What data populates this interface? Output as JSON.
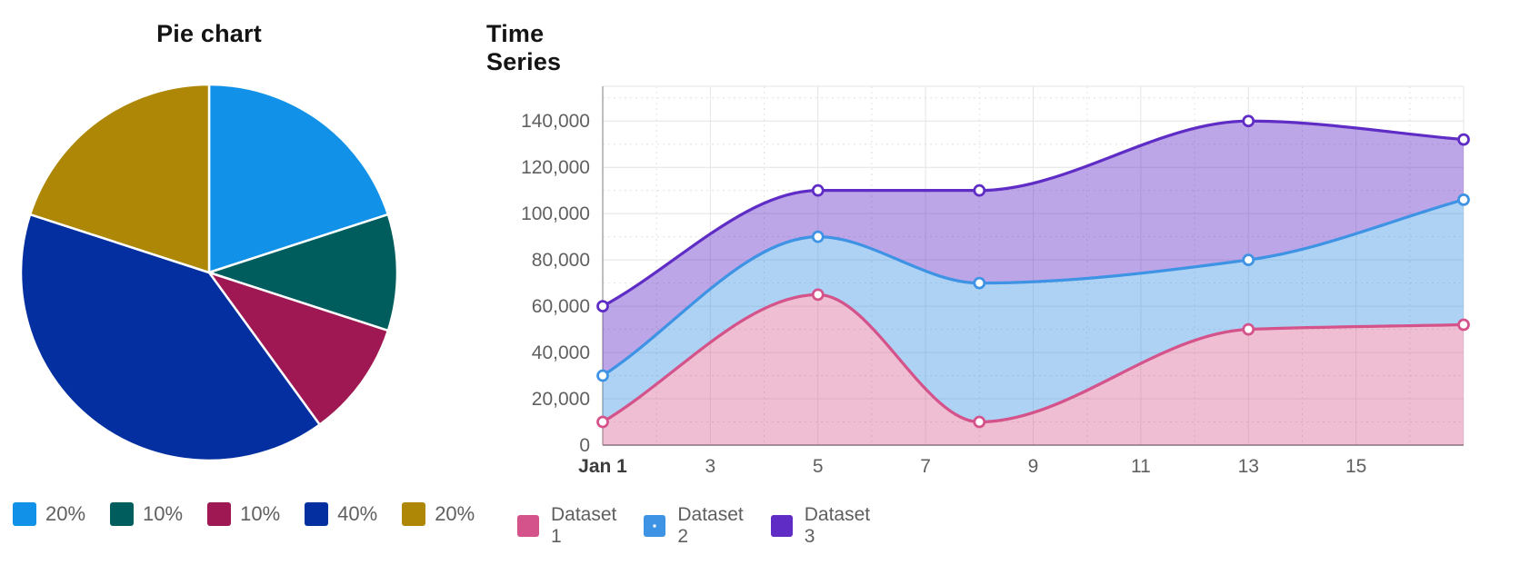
{
  "chart_data": [
    {
      "type": "pie",
      "title": "Pie chart",
      "start_angle": "12 o'clock, clockwise",
      "legend_position": "bottom",
      "slices": [
        {
          "label": "20%",
          "value": 20,
          "color": "#1192e8",
          "color_name": "cyan"
        },
        {
          "label": "10%",
          "value": 10,
          "color": "#005d5d",
          "color_name": "teal"
        },
        {
          "label": "10%",
          "value": 10,
          "color": "#9f1853",
          "color_name": "magenta"
        },
        {
          "label": "40%",
          "value": 40,
          "color": "#042fa0",
          "color_name": "dark-blue"
        },
        {
          "label": "20%",
          "value": 20,
          "color": "#ad8705",
          "color_name": "gold"
        }
      ]
    },
    {
      "type": "area",
      "title": "Time Series",
      "curve": "monotone",
      "fill_mode": "between-series",
      "legend_position": "bottom",
      "x_days": [
        1,
        5,
        8,
        13,
        17
      ],
      "x_axis": {
        "tick_labels": [
          "Jan 1",
          "3",
          "5",
          "7",
          "9",
          "11",
          "13",
          "15"
        ],
        "tick_days": [
          1,
          3,
          5,
          7,
          9,
          11,
          13,
          15
        ],
        "range_days": [
          1,
          17
        ]
      },
      "y_axis": {
        "ticks": [
          0,
          20000,
          40000,
          60000,
          80000,
          100000,
          120000,
          140000
        ],
        "tick_labels": [
          "0",
          "20,000",
          "40,000",
          "60,000",
          "80,000",
          "100,000",
          "120,000",
          "140,000"
        ],
        "display_max": 155000,
        "grid": true
      },
      "series": [
        {
          "name": "Dataset 1",
          "line_color": "#d4538a",
          "fill_color": "rgba(212,83,138,0.38)",
          "swatch_pattern": "solid",
          "values": [
            10000,
            65000,
            10000,
            50000,
            52000
          ]
        },
        {
          "name": "Dataset 2",
          "line_color": "#3f93e4",
          "fill_color": "rgba(63,147,228,0.42)",
          "swatch_pattern": "dotted",
          "values": [
            30000,
            90000,
            70000,
            80000,
            106000
          ]
        },
        {
          "name": "Dataset 3",
          "line_color": "#5f2cc6",
          "fill_color": "rgba(95,44,198,0.42)",
          "swatch_pattern": "solid",
          "values": [
            60000,
            110000,
            110000,
            140000,
            132000
          ]
        }
      ],
      "marker_style": {
        "fill": "#ffffff",
        "radius": 5.5
      }
    }
  ]
}
